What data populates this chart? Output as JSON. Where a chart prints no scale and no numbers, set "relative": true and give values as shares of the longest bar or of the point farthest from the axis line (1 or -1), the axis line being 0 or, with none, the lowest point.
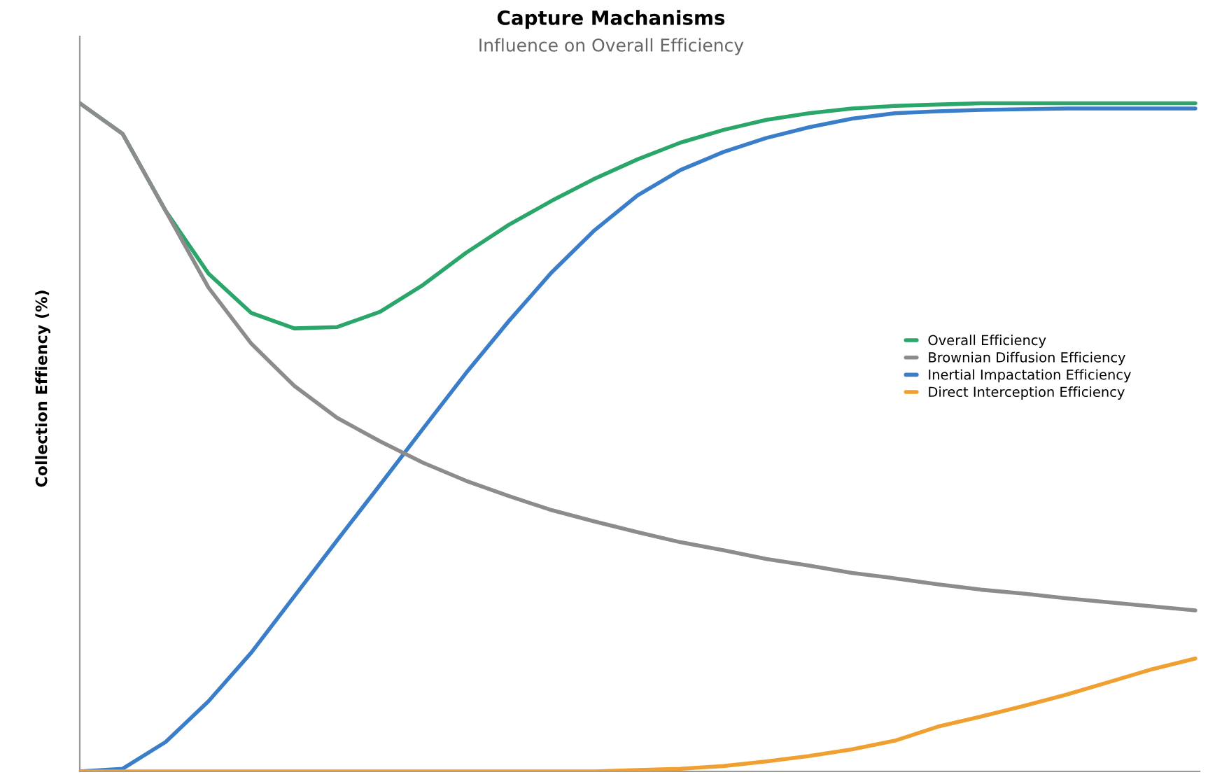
{
  "chart_data": {
    "type": "line",
    "title": "Capture Machanisms",
    "subtitle": "Influence on Overall Efficiency",
    "ylabel": "Collection Effiency (%)",
    "relative": true,
    "legend": "right",
    "marker": "none",
    "line_style": "solid",
    "categories": [
      null,
      null,
      null,
      null,
      null,
      null,
      null,
      null,
      null,
      null,
      null,
      null,
      null,
      null,
      null,
      null,
      null,
      null,
      null,
      null,
      null,
      null,
      null,
      null,
      null,
      null,
      null
    ],
    "series": [
      {
        "name": "Overall Efficiency",
        "color": "#2aa66a",
        "values": [
          1.0,
          0.954,
          0.839,
          0.745,
          0.686,
          0.663,
          0.665,
          0.688,
          0.728,
          0.776,
          0.818,
          0.854,
          0.887,
          0.916,
          0.941,
          0.96,
          0.975,
          0.985,
          0.992,
          0.996,
          0.998,
          1.0,
          1.0,
          1.0,
          1.0,
          1.0,
          1.0
        ]
      },
      {
        "name": "Brownian Diffusion Efficiency",
        "color": "#8c8c8c",
        "values": [
          1.0,
          0.954,
          0.839,
          0.724,
          0.64,
          0.577,
          0.529,
          0.494,
          0.462,
          0.435,
          0.412,
          0.391,
          0.374,
          0.358,
          0.343,
          0.331,
          0.318,
          0.308,
          0.297,
          0.289,
          0.28,
          0.272,
          0.266,
          0.259,
          0.253,
          0.247,
          0.241
        ]
      },
      {
        "name": "Inertial Impactation Efficiency",
        "color": "#3a7dc9",
        "values": [
          0.0,
          0.004,
          0.044,
          0.105,
          0.178,
          0.262,
          0.346,
          0.429,
          0.513,
          0.596,
          0.674,
          0.747,
          0.81,
          0.862,
          0.9,
          0.927,
          0.948,
          0.964,
          0.977,
          0.985,
          0.988,
          0.99,
          0.991,
          0.992,
          0.992,
          0.992,
          0.992
        ]
      },
      {
        "name": "Direct Interception Efficiency",
        "color": "#f0a030",
        "values": [
          0.0,
          0.0,
          0.0,
          0.0,
          0.0,
          0.0,
          0.0,
          0.0,
          0.0,
          0.0,
          0.0,
          0.0,
          0.0,
          0.002,
          0.004,
          0.008,
          0.015,
          0.023,
          0.033,
          0.046,
          0.067,
          0.082,
          0.098,
          0.115,
          0.134,
          0.153,
          0.169
        ]
      }
    ]
  }
}
